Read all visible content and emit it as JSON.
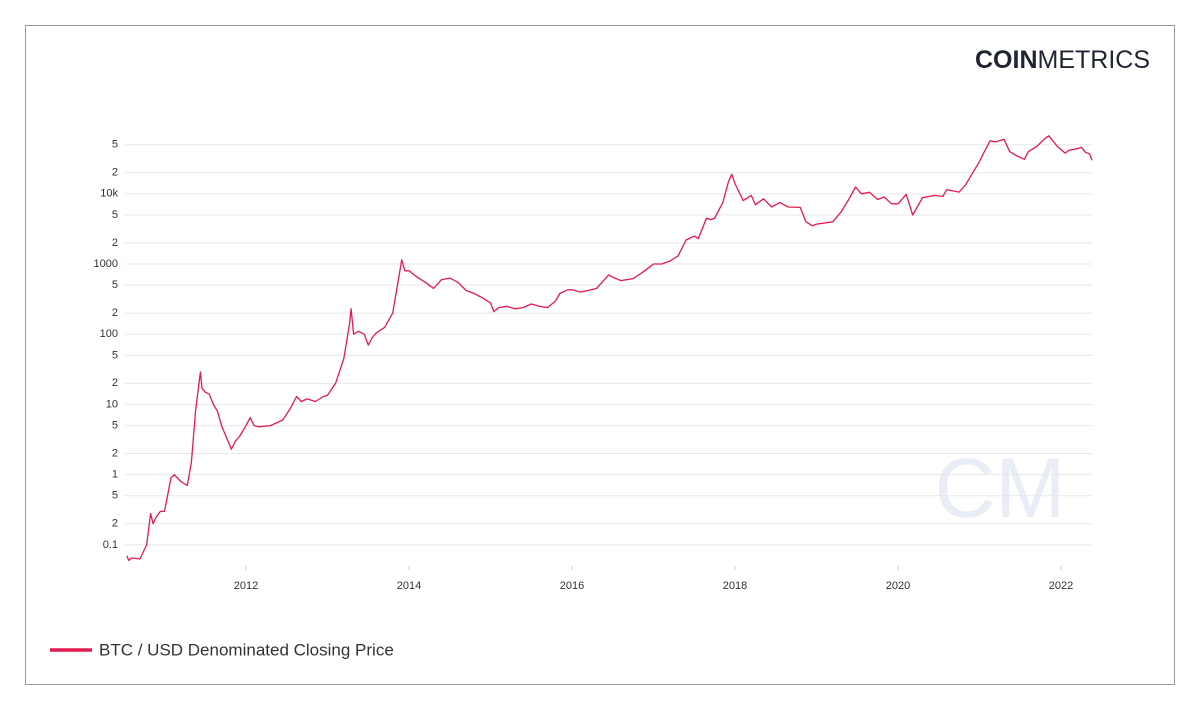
{
  "logo": {
    "bold": "COIN",
    "light": "METRICS"
  },
  "watermark": "CM",
  "chart_data": {
    "type": "line",
    "log_scale": true,
    "grid": true,
    "legend": "bottom-left",
    "xlim": [
      2010.54,
      2022.38
    ],
    "xticks": [
      2012,
      2014,
      2016,
      2018,
      2020,
      2022
    ],
    "ylim": [
      0.05,
      70000
    ],
    "yticks": [
      0.1,
      {
        "value": 0.2,
        "label": "2"
      },
      {
        "value": 0.5,
        "label": "5"
      },
      1,
      {
        "value": 2,
        "label": "2"
      },
      {
        "value": 5,
        "label": "5"
      },
      10,
      {
        "value": 20,
        "label": "2"
      },
      {
        "value": 50,
        "label": "5"
      },
      100,
      {
        "value": 200,
        "label": "2"
      },
      {
        "value": 500,
        "label": "5"
      },
      1000,
      {
        "value": 2000,
        "label": "2"
      },
      {
        "value": 5000,
        "label": "5"
      },
      {
        "value": 10000,
        "label": "10k"
      },
      {
        "value": 20000,
        "label": "2"
      },
      {
        "value": 50000,
        "label": "5"
      }
    ],
    "x": [
      2010.54,
      2010.56,
      2010.6,
      2010.7,
      2010.78,
      2010.83,
      2010.86,
      2010.9,
      2010.95,
      2011.0,
      2011.08,
      2011.12,
      2011.2,
      2011.28,
      2011.33,
      2011.38,
      2011.44,
      2011.46,
      2011.5,
      2011.55,
      2011.6,
      2011.65,
      2011.7,
      2011.78,
      2011.82,
      2011.87,
      2011.92,
      2012.0,
      2012.05,
      2012.1,
      2012.15,
      2012.3,
      2012.45,
      2012.55,
      2012.62,
      2012.68,
      2012.75,
      2012.85,
      2012.95,
      2013.0,
      2013.1,
      2013.2,
      2013.27,
      2013.29,
      2013.32,
      2013.38,
      2013.45,
      2013.5,
      2013.55,
      2013.6,
      2013.7,
      2013.8,
      2013.87,
      2013.91,
      2013.95,
      2014.0,
      2014.1,
      2014.2,
      2014.3,
      2014.4,
      2014.5,
      2014.6,
      2014.7,
      2014.8,
      2014.9,
      2015.0,
      2015.04,
      2015.1,
      2015.2,
      2015.3,
      2015.4,
      2015.5,
      2015.6,
      2015.7,
      2015.8,
      2015.85,
      2015.95,
      2016.0,
      2016.1,
      2016.2,
      2016.3,
      2016.45,
      2016.5,
      2016.6,
      2016.75,
      2016.85,
      2016.98,
      2017.0,
      2017.1,
      2017.2,
      2017.3,
      2017.4,
      2017.5,
      2017.55,
      2017.65,
      2017.7,
      2017.75,
      2017.85,
      2017.92,
      2017.96,
      2018.0,
      2018.1,
      2018.2,
      2018.25,
      2018.35,
      2018.45,
      2018.55,
      2018.65,
      2018.8,
      2018.87,
      2018.95,
      2019.0,
      2019.2,
      2019.3,
      2019.4,
      2019.48,
      2019.55,
      2019.65,
      2019.75,
      2019.83,
      2019.92,
      2020.0,
      2020.1,
      2020.18,
      2020.3,
      2020.45,
      2020.55,
      2020.6,
      2020.75,
      2020.83,
      2020.9,
      2021.0,
      2021.05,
      2021.13,
      2021.2,
      2021.3,
      2021.37,
      2021.45,
      2021.55,
      2021.6,
      2021.7,
      2021.8,
      2021.85,
      2021.9,
      2021.95,
      2022.05,
      2022.1,
      2022.2,
      2022.25,
      2022.3,
      2022.35,
      2022.38
    ],
    "series": [
      {
        "name": "BTC / USD Denominated Closing Price",
        "color": "#e31b4f",
        "values": [
          0.07,
          0.06,
          0.065,
          0.063,
          0.1,
          0.28,
          0.2,
          0.25,
          0.3,
          0.3,
          0.9,
          1.0,
          0.8,
          0.7,
          1.5,
          8,
          29,
          17,
          15,
          14,
          10,
          8,
          5,
          3,
          2.3,
          3,
          3.5,
          5,
          6.5,
          5,
          4.8,
          5,
          6,
          9,
          13,
          11,
          12,
          11,
          13,
          13.5,
          20,
          45,
          140,
          230,
          100,
          110,
          100,
          70,
          90,
          105,
          125,
          200,
          600,
          1150,
          800,
          800,
          650,
          550,
          450,
          600,
          630,
          550,
          420,
          380,
          330,
          280,
          210,
          240,
          250,
          230,
          240,
          270,
          250,
          240,
          300,
          380,
          430,
          430,
          400,
          420,
          450,
          700,
          650,
          580,
          620,
          740,
          960,
          1000,
          1000,
          1100,
          1300,
          2200,
          2500,
          2300,
          4500,
          4300,
          4500,
          7500,
          15000,
          19000,
          14000,
          8000,
          9500,
          7000,
          8500,
          6500,
          7500,
          6500,
          6400,
          4000,
          3500,
          3700,
          4000,
          5500,
          8500,
          12500,
          10000,
          10500,
          8300,
          9000,
          7200,
          7200,
          9800,
          5000,
          8800,
          9500,
          9200,
          11500,
          10600,
          13500,
          18500,
          29000,
          38000,
          57000,
          55000,
          60000,
          40000,
          35000,
          31000,
          40000,
          47000,
          61000,
          67000,
          57000,
          48000,
          38000,
          42000,
          44000,
          46000,
          39000,
          37000,
          30000
        ]
      }
    ]
  }
}
